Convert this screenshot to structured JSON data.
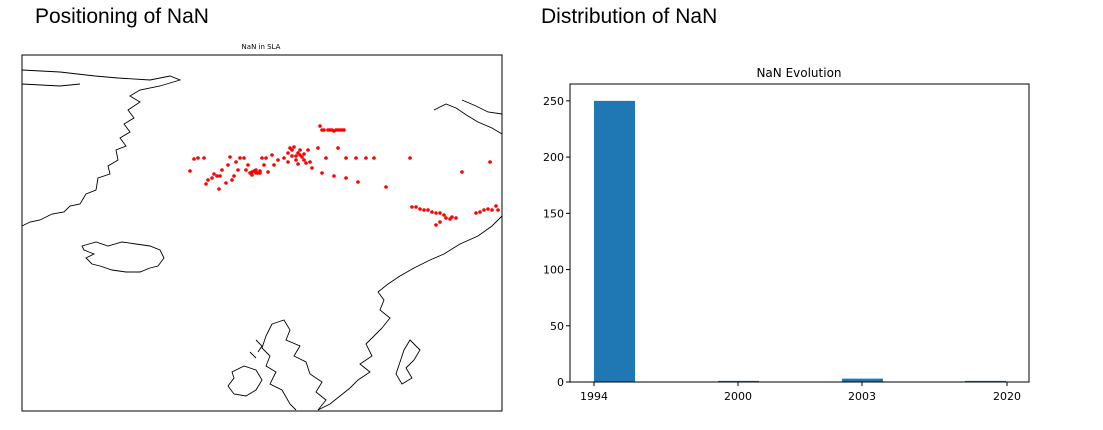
{
  "panels": {
    "left_heading": "Positioning of NaN",
    "right_heading": "Distribution of NaN"
  },
  "chart_data": [
    {
      "type": "scatter",
      "title": "NaN in SLA",
      "marker_color": "#ff0000",
      "map": "North Atlantic / Greenland - Iceland - Scandinavia coastlines",
      "x": [],
      "y": []
    },
    {
      "type": "bar",
      "title": "NaN Evolution",
      "categories": [
        "1994",
        "2000",
        "2003",
        "2020"
      ],
      "values": [
        250,
        1,
        3,
        1
      ],
      "ylim": [
        0,
        265
      ],
      "yticks": [
        0,
        50,
        100,
        150,
        200,
        250
      ],
      "bar_color": "#1f77b4",
      "grid": false
    }
  ]
}
